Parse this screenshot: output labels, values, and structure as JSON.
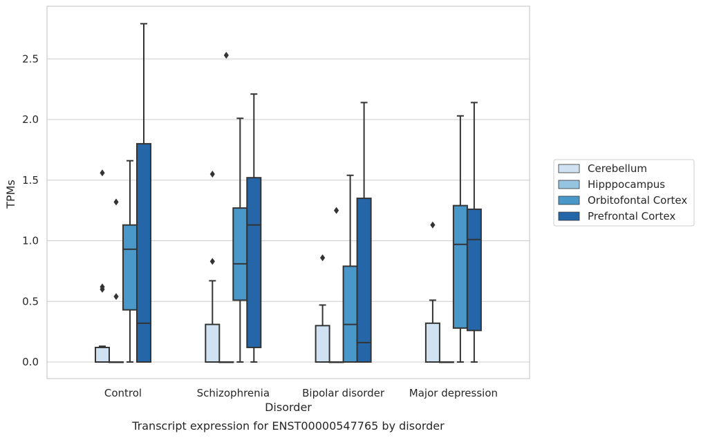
{
  "chart_data": {
    "type": "box",
    "xlabel": "Disorder",
    "ylabel": "TPMs",
    "caption": "Transcript expression for ENST00000547765 by disorder",
    "ylim": [
      -0.13,
      2.93
    ],
    "yticks": [
      "0.0",
      "0.5",
      "1.0",
      "1.5",
      "2.0",
      "2.5"
    ],
    "grid": "horizontal",
    "legend_position": "right",
    "categories": [
      "Control",
      "Schizophrenia",
      "Bipolar disorder",
      "Major depression"
    ],
    "series": [
      {
        "name": "Cerebellum",
        "color": "#d0e1f2",
        "boxes": [
          {
            "whisker_low": 0.0,
            "q1": 0.0,
            "median": 0.0,
            "q3": 0.12,
            "whisker_high": 0.13,
            "outliers": [
              1.56,
              0.62,
              0.6
            ]
          },
          {
            "whisker_low": 0.0,
            "q1": 0.0,
            "median": 0.0,
            "q3": 0.31,
            "whisker_high": 0.67,
            "outliers": [
              1.55,
              0.83
            ]
          },
          {
            "whisker_low": 0.0,
            "q1": 0.0,
            "median": 0.0,
            "q3": 0.3,
            "whisker_high": 0.47,
            "outliers": [
              0.86
            ]
          },
          {
            "whisker_low": 0.0,
            "q1": 0.0,
            "median": 0.0,
            "q3": 0.32,
            "whisker_high": 0.51,
            "outliers": [
              1.13
            ]
          }
        ]
      },
      {
        "name": "Hipppocampus",
        "color": "#94c4df",
        "boxes": [
          {
            "whisker_low": 0.0,
            "q1": 0.0,
            "median": 0.0,
            "q3": 0.0,
            "whisker_high": 0.0,
            "outliers": [
              1.32,
              0.54
            ]
          },
          {
            "whisker_low": 0.0,
            "q1": 0.0,
            "median": 0.0,
            "q3": 0.0,
            "whisker_high": 0.0,
            "outliers": [
              2.53
            ]
          },
          {
            "whisker_low": 0.0,
            "q1": 0.0,
            "median": 0.0,
            "q3": 0.0,
            "whisker_high": 0.0,
            "outliers": [
              1.25
            ]
          },
          {
            "whisker_low": 0.0,
            "q1": 0.0,
            "median": 0.0,
            "q3": 0.0,
            "whisker_high": 0.0,
            "outliers": []
          }
        ]
      },
      {
        "name": "Orbitofontal Cortex",
        "color": "#4a98c9",
        "boxes": [
          {
            "whisker_low": 0.0,
            "q1": 0.43,
            "median": 0.93,
            "q3": 1.13,
            "whisker_high": 1.66,
            "outliers": []
          },
          {
            "whisker_low": 0.0,
            "q1": 0.51,
            "median": 0.81,
            "q3": 1.27,
            "whisker_high": 2.01,
            "outliers": []
          },
          {
            "whisker_low": 0.0,
            "q1": 0.0,
            "median": 0.31,
            "q3": 0.79,
            "whisker_high": 1.54,
            "outliers": []
          },
          {
            "whisker_low": 0.0,
            "q1": 0.28,
            "median": 0.97,
            "q3": 1.29,
            "whisker_high": 2.03,
            "outliers": []
          }
        ]
      },
      {
        "name": "Prefrontal Cortex",
        "color": "#2566a8",
        "boxes": [
          {
            "whisker_low": 0.0,
            "q1": 0.0,
            "median": 0.32,
            "q3": 1.8,
            "whisker_high": 2.79,
            "outliers": []
          },
          {
            "whisker_low": 0.0,
            "q1": 0.12,
            "median": 1.13,
            "q3": 1.52,
            "whisker_high": 2.21,
            "outliers": []
          },
          {
            "whisker_low": 0.0,
            "q1": 0.0,
            "median": 0.16,
            "q3": 1.35,
            "whisker_high": 2.14,
            "outliers": []
          },
          {
            "whisker_low": 0.0,
            "q1": 0.26,
            "median": 1.01,
            "q3": 1.26,
            "whisker_high": 2.14,
            "outliers": []
          }
        ]
      }
    ]
  }
}
